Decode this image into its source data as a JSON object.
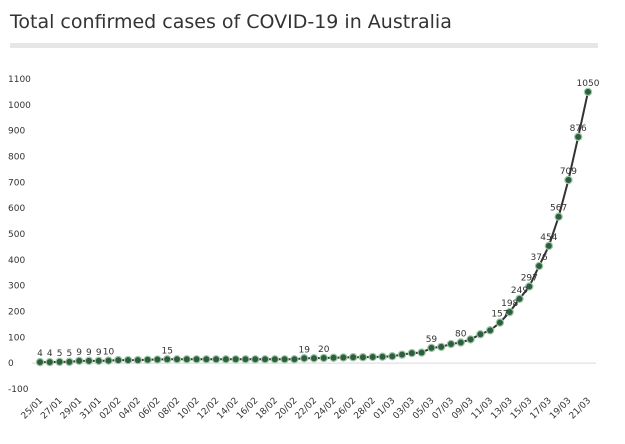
{
  "chart_data": {
    "type": "line",
    "title": "Total confirmed cases of COVID-19 in Australia",
    "categories": [
      "25/01",
      null,
      "27/01",
      null,
      "29/01",
      null,
      "31/01",
      null,
      "02/02",
      null,
      "04/02",
      null,
      "06/02",
      null,
      "08/02",
      null,
      "10/02",
      null,
      "12/02",
      null,
      "14/02",
      null,
      "16/02",
      null,
      "18/02",
      null,
      "20/02",
      null,
      "22/02",
      null,
      "24/02",
      null,
      "26/02",
      null,
      "28/02",
      null,
      "01/03",
      null,
      "03/03",
      null,
      "05/03",
      null,
      "07/03",
      null,
      "09/03",
      null,
      "11/03",
      null,
      "13/03",
      null,
      "15/03",
      null,
      "17/03",
      null,
      "19/03",
      null,
      "21/03"
    ],
    "values": [
      4,
      4,
      5,
      5,
      9,
      9,
      9,
      10,
      12,
      12,
      12,
      13,
      14,
      15,
      15,
      15,
      15,
      15,
      15,
      15,
      15,
      15,
      15,
      15,
      15,
      15,
      15,
      19,
      19,
      20,
      21,
      22,
      23,
      23,
      24,
      25,
      27,
      33,
      39,
      41,
      59,
      63,
      74,
      80,
      92,
      112,
      127,
      157,
      198,
      249,
      297,
      376,
      454,
      567,
      709,
      876,
      1050
    ],
    "value_labels": [
      "4",
      "4",
      "5",
      "5",
      "9",
      "9",
      "9",
      "10",
      null,
      null,
      null,
      null,
      null,
      "15",
      null,
      null,
      null,
      null,
      null,
      null,
      null,
      null,
      null,
      null,
      null,
      null,
      null,
      "19",
      null,
      "20",
      null,
      null,
      null,
      null,
      null,
      null,
      null,
      null,
      null,
      null,
      "59",
      null,
      null,
      "80",
      null,
      null,
      null,
      "157",
      "198",
      "249",
      "297",
      "376",
      "454",
      "567",
      "709",
      "876",
      "1050"
    ],
    "color": "#333333",
    "marker_color": "#2f5d40",
    "marker_edge": "#9ec9a4",
    "ylim": [
      -100,
      1100
    ],
    "yticks": [
      -100,
      0,
      100,
      200,
      300,
      400,
      500,
      600,
      700,
      800,
      900,
      1000,
      1100
    ],
    "grid": false
  }
}
